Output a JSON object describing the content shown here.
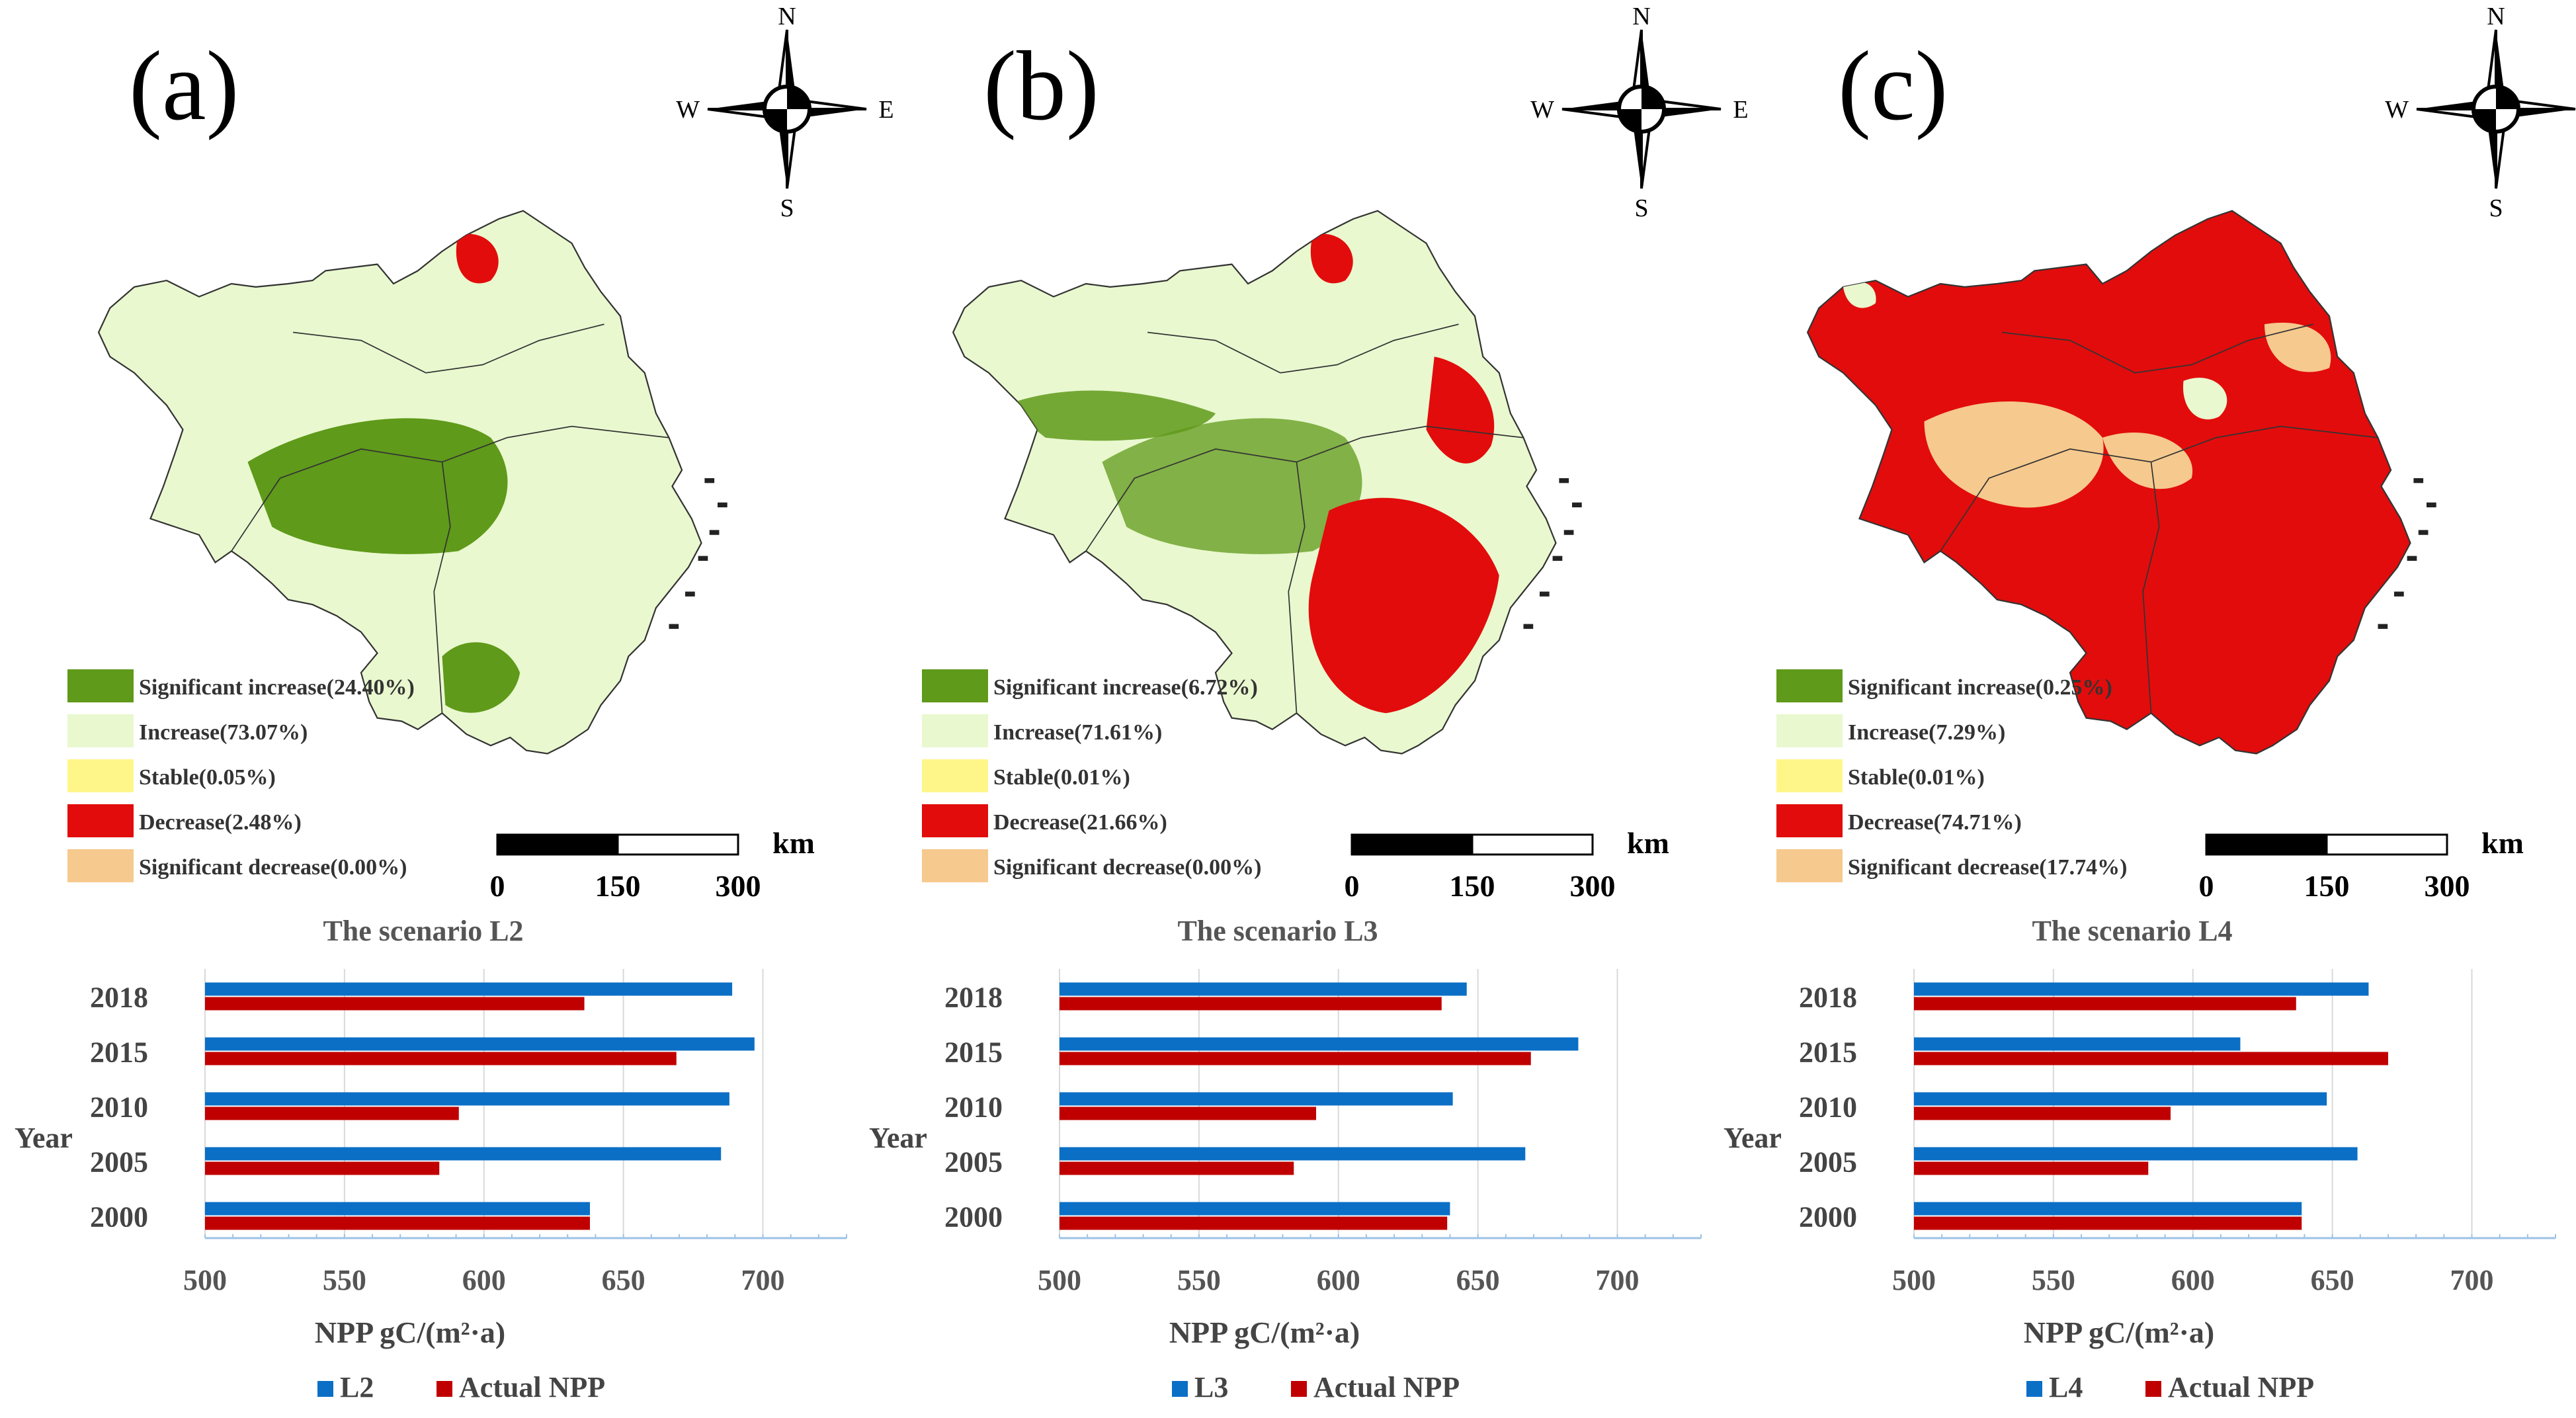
{
  "panels": [
    {
      "label": "(a)",
      "compass": {
        "n": "N",
        "s": "S",
        "e": "E",
        "w": "W"
      },
      "legend": [
        {
          "text": "Significant increase(24.40%)",
          "color": "#5f9a1a"
        },
        {
          "text": "Increase(73.07%)",
          "color": "#e9f8cf"
        },
        {
          "text": "Stable(0.05%)",
          "color": "#fff68a"
        },
        {
          "text": "Decrease(2.48%)",
          "color": "#e20c0c"
        },
        {
          "text": "Significant decrease(0.00%)",
          "color": "#f6c98e"
        }
      ],
      "scalebar": {
        "ticks": [
          "0",
          "150",
          "300"
        ],
        "unit": "km"
      },
      "map_fill": {
        "increase": 0.7307,
        "significant_increase": 0.244,
        "decrease": 0.0248,
        "significant_decrease": 0.0
      }
    },
    {
      "label": "(b)",
      "compass": {
        "n": "N",
        "s": "S",
        "e": "E",
        "w": "W"
      },
      "legend": [
        {
          "text": "Significant increase(6.72%)",
          "color": "#5f9a1a"
        },
        {
          "text": "Increase(71.61%)",
          "color": "#e9f8cf"
        },
        {
          "text": "Stable(0.01%)",
          "color": "#fff68a"
        },
        {
          "text": "Decrease(21.66%)",
          "color": "#e20c0c"
        },
        {
          "text": "Significant decrease(0.00%)",
          "color": "#f6c98e"
        }
      ],
      "scalebar": {
        "ticks": [
          "0",
          "150",
          "300"
        ],
        "unit": "km"
      },
      "map_fill": {
        "increase": 0.7161,
        "significant_increase": 0.0672,
        "decrease": 0.2166,
        "significant_decrease": 0.0
      }
    },
    {
      "label": "(c)",
      "compass": {
        "n": "N",
        "s": "S",
        "e": "E",
        "w": "W"
      },
      "legend": [
        {
          "text": "Significant increase(0.25%)",
          "color": "#5f9a1a"
        },
        {
          "text": "Increase(7.29%)",
          "color": "#e9f8cf"
        },
        {
          "text": "Stable(0.01%)",
          "color": "#fff68a"
        },
        {
          "text": "Decrease(74.71%)",
          "color": "#e20c0c"
        },
        {
          "text": "Significant decrease(17.74%)",
          "color": "#f6c98e"
        }
      ],
      "scalebar": {
        "ticks": [
          "0",
          "150",
          "300"
        ],
        "unit": "km"
      },
      "map_fill": {
        "increase": 0.0729,
        "significant_increase": 0.0025,
        "decrease": 0.7471,
        "significant_decrease": 0.1774
      }
    }
  ],
  "chart_data": [
    {
      "type": "bar",
      "orientation": "horizontal",
      "title": "The scenario L2",
      "categories": [
        "2018",
        "2015",
        "2010",
        "2005",
        "2000"
      ],
      "series": [
        {
          "name": "L2",
          "color": "#0b6fc6",
          "values": [
            689,
            697,
            688,
            685,
            638
          ]
        },
        {
          "name": "Actual NPP",
          "color": "#c00000",
          "values": [
            636,
            669,
            591,
            584,
            638
          ]
        }
      ],
      "xlim": [
        500,
        730
      ],
      "xticks": [
        "500",
        "550",
        "600",
        "650",
        "700"
      ],
      "ylabel": "Year",
      "xlabel": "NPP  gC/(m²·a)",
      "legend_position": "bottom"
    },
    {
      "type": "bar",
      "orientation": "horizontal",
      "title": "The scenario L3",
      "categories": [
        "2018",
        "2015",
        "2010",
        "2005",
        "2000"
      ],
      "series": [
        {
          "name": "L3",
          "color": "#0b6fc6",
          "values": [
            646,
            686,
            641,
            667,
            640
          ]
        },
        {
          "name": "Actual NPP",
          "color": "#c00000",
          "values": [
            637,
            669,
            592,
            584,
            639
          ]
        }
      ],
      "xlim": [
        500,
        730
      ],
      "xticks": [
        "500",
        "550",
        "600",
        "650",
        "700"
      ],
      "ylabel": "Year",
      "xlabel": "NPP  gC/(m²·a)",
      "legend_position": "bottom"
    },
    {
      "type": "bar",
      "orientation": "horizontal",
      "title": "The scenario L4",
      "categories": [
        "2018",
        "2015",
        "2010",
        "2005",
        "2000"
      ],
      "series": [
        {
          "name": "L4",
          "color": "#0b6fc6",
          "values": [
            663,
            617,
            648,
            659,
            639
          ]
        },
        {
          "name": "Actual NPP",
          "color": "#c00000",
          "values": [
            637,
            670,
            592,
            584,
            639
          ]
        }
      ],
      "xlim": [
        500,
        730
      ],
      "xticks": [
        "500",
        "550",
        "600",
        "650",
        "700"
      ],
      "ylabel": "Year",
      "xlabel": "NPP  gC/(m²·a)",
      "legend_position": "bottom"
    }
  ]
}
